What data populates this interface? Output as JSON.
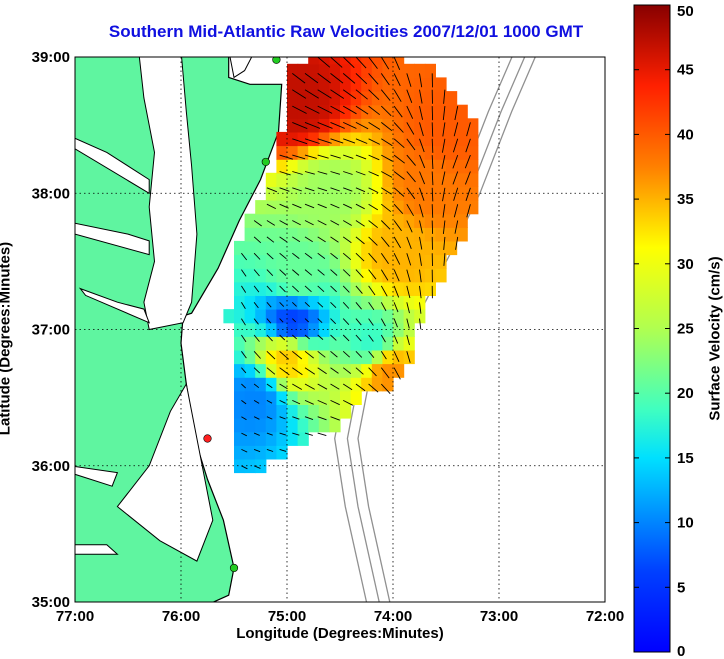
{
  "chart_data": {
    "type": "heatmap",
    "title": "Southern Mid-Atlantic Raw Velocities 2007/12/01 1000 GMT",
    "xlabel": "Longitude (Degrees:Minutes)",
    "ylabel": "Latitude (Degrees:Minutes)",
    "colorbar_label": "Surface Velocity (cm/s)",
    "x_ticks": [
      {
        "value": -77,
        "label": "77:00"
      },
      {
        "value": -76,
        "label": "76:00"
      },
      {
        "value": -75,
        "label": "75:00"
      },
      {
        "value": -74,
        "label": "74:00"
      },
      {
        "value": -73,
        "label": "73:00"
      },
      {
        "value": -72,
        "label": "72:00"
      }
    ],
    "y_ticks": [
      {
        "value": 35,
        "label": "35:00"
      },
      {
        "value": 36,
        "label": "36:00"
      },
      {
        "value": 37,
        "label": "37:00"
      },
      {
        "value": 38,
        "label": "38:00"
      },
      {
        "value": 39,
        "label": "39:00"
      }
    ],
    "xlim": [
      -77,
      -72
    ],
    "ylim": [
      35,
      39
    ],
    "colorbar": {
      "min": 0,
      "max": 50,
      "ticks": [
        0,
        5,
        10,
        15,
        20,
        25,
        30,
        35,
        40,
        45,
        50
      ]
    },
    "grid": true,
    "hotspots": [
      {
        "lon": -74.9,
        "lat": 38.65,
        "speed": 47
      },
      {
        "lon": -73.5,
        "lat": 38.45,
        "speed": 40
      },
      {
        "lon": -73.65,
        "lat": 38.05,
        "speed": 38
      },
      {
        "lon": -73.95,
        "lat": 37.55,
        "speed": 35
      },
      {
        "lon": -74.05,
        "lat": 36.7,
        "speed": 37
      },
      {
        "lon": -75.0,
        "lat": 36.8,
        "speed": 34
      },
      {
        "lon": -74.95,
        "lat": 37.05,
        "speed": 6
      },
      {
        "lon": -75.3,
        "lat": 36.5,
        "speed": 10
      },
      {
        "lon": -74.2,
        "lat": 36.9,
        "speed": 18
      },
      {
        "lon": -74.6,
        "lat": 38.0,
        "speed": 24
      },
      {
        "lon": -74.9,
        "lat": 37.4,
        "speed": 21
      }
    ],
    "sites": [
      {
        "lon": -75.1,
        "lat": 38.98,
        "color": "#22cc22"
      },
      {
        "lon": -75.2,
        "lat": 38.23,
        "color": "#22cc22"
      },
      {
        "lon": -75.75,
        "lat": 36.2,
        "color": "#ff2020"
      },
      {
        "lon": -75.5,
        "lat": 35.25,
        "color": "#22cc22"
      }
    ],
    "colors": {
      "land": "#5ff5a0",
      "coast": "#000000",
      "grid": "#000000",
      "bathymetry": "#909090"
    }
  }
}
